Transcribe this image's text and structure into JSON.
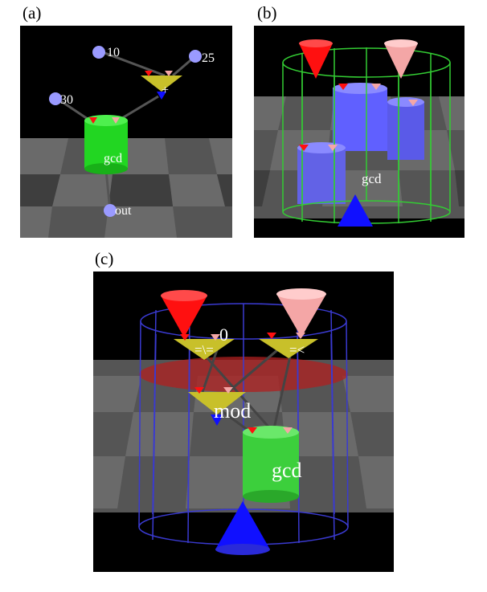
{
  "figure": {
    "panels": [
      {
        "caption": "(a)",
        "labels": {
          "n10": "10",
          "n25": "25",
          "n30": "30",
          "plus": "+",
          "gcd": "gcd",
          "out": "out"
        }
      },
      {
        "caption": "(b)",
        "labels": {
          "gcd": "gcd"
        }
      },
      {
        "caption": "(c)",
        "labels": {
          "zero": "0",
          "neq": "=\\=",
          "lt": "=<",
          "mod": "mod",
          "gcd": "gcd"
        }
      }
    ],
    "colors": {
      "background": "#000000",
      "floor_light": "#6a6a6a",
      "floor_dark": "#3a3a3a",
      "input_red": "#ff1010",
      "input_pink": "#f4a6a6",
      "output_blue": "#1010ff",
      "node_yellow": "#c8c02a",
      "gcd_green": "#22d622",
      "cylinder_blue": "#6060ff",
      "wire_green": "#33cc33",
      "wire_blue": "#3a3ad0",
      "constant_lilac": "#9a9aff"
    }
  }
}
